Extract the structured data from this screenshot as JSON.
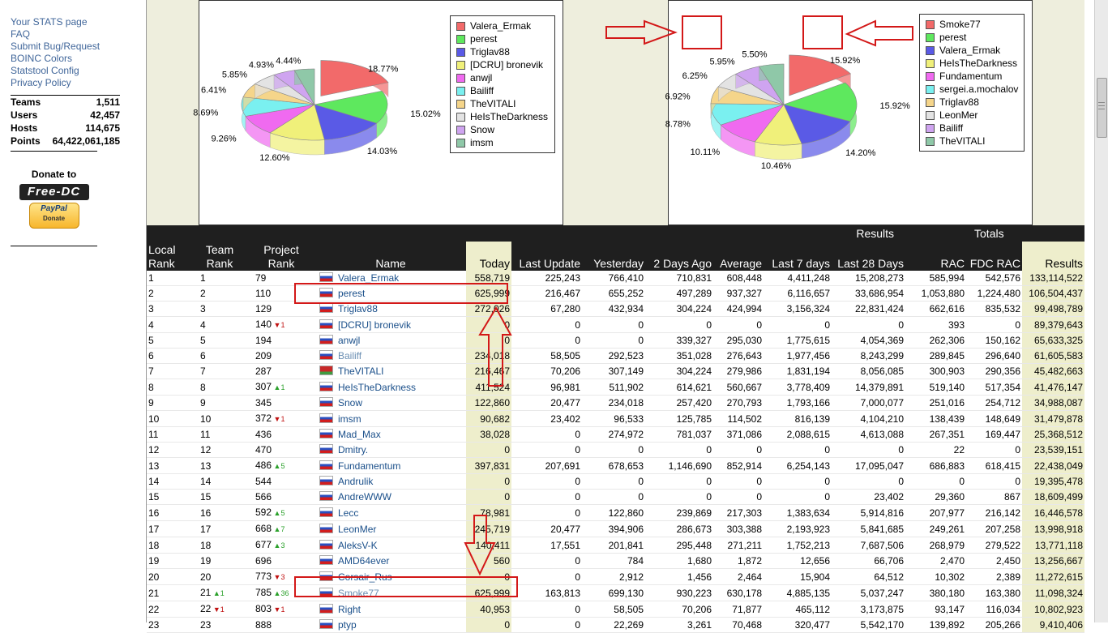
{
  "sidebar": {
    "links": [
      "Your STATS page",
      "FAQ",
      "Submit Bug/Request",
      "BOINC Colors",
      "Statstool Config",
      "Privacy Policy"
    ],
    "stats": [
      {
        "label": "Teams",
        "value": "1,511"
      },
      {
        "label": "Users",
        "value": "42,457"
      },
      {
        "label": "Hosts",
        "value": "114,675"
      },
      {
        "label": "Points",
        "value": "64,422,061,185"
      }
    ],
    "donate_title": "Donate to",
    "freedc_logo": "Free-DC",
    "paypal_label": "PayPal",
    "paypal_sub": "Donate"
  },
  "chart_data": [
    {
      "type": "pie",
      "legend": [
        "Valera_Ermak",
        "perest",
        "Triglav88",
        "[DCRU] bronevik",
        "anwjl",
        "Bailiff",
        "TheVITALI",
        "HeIsTheDarkness",
        "Snow",
        "imsm"
      ],
      "labels": [
        "18.77%",
        "15.02%",
        "14.03%",
        "12.60%",
        "9.26%",
        "8.69%",
        "6.41%",
        "5.85%",
        "4.93%",
        "4.44%"
      ],
      "values": [
        18.77,
        15.02,
        14.03,
        12.6,
        9.26,
        8.69,
        6.41,
        5.85,
        4.93,
        4.44
      ],
      "colors": [
        "#f26a6a",
        "#5ee85e",
        "#5a5ae6",
        "#f0f07a",
        "#f06af0",
        "#7af0f0",
        "#f5d58a",
        "#e3e3e3",
        "#cfa4f0",
        "#8fc8a8"
      ],
      "legend_placement": "right"
    },
    {
      "type": "pie",
      "legend": [
        "Smoke77",
        "perest",
        "Valera_Ermak",
        "HeIsTheDarkness",
        "Fundamentum",
        "sergei.a.mochalov",
        "Triglav88",
        "LeonMer",
        "Bailiff",
        "TheVITALI"
      ],
      "labels": [
        "15.92%",
        "15.92%",
        "14.20%",
        "10.46%",
        "10.11%",
        "8.78%",
        "6.92%",
        "6.25%",
        "5.95%",
        "5.50%"
      ],
      "values": [
        15.92,
        15.92,
        14.2,
        10.46,
        10.11,
        8.78,
        6.92,
        6.25,
        5.95,
        5.5
      ],
      "colors": [
        "#f26a6a",
        "#5ee85e",
        "#5a5ae6",
        "#f0f07a",
        "#f06af0",
        "#7af0f0",
        "#f5d58a",
        "#e3e3e3",
        "#cfa4f0",
        "#8fc8a8"
      ],
      "legend_placement": "right"
    }
  ],
  "table": {
    "group_headers": {
      "results": "Results",
      "totals": "Totals"
    },
    "headers": [
      "Local\nRank",
      "Team\nRank",
      "Project\nRank",
      "Name",
      "Today",
      "Last Update",
      "Yesterday",
      "2 Days Ago",
      "Average",
      "Last 7 days",
      "Last 28 Days",
      "RAC",
      "FDC RAC",
      "Results"
    ],
    "rows": [
      {
        "local": "1",
        "team": "1",
        "project": "79",
        "flag": "ru",
        "name": "Valera_Ermak",
        "today": "558,719",
        "last_update": "225,243",
        "yesterday": "766,410",
        "two_days": "710,831",
        "average": "608,448",
        "last7": "4,411,248",
        "last28": "15,208,273",
        "rac": "585,994",
        "fdc_rac": "542,576",
        "results": "133,114,522"
      },
      {
        "local": "2",
        "team": "2",
        "project": "110",
        "flag": "ru",
        "name": "perest",
        "today": "625,999",
        "last_update": "216,467",
        "yesterday": "655,252",
        "two_days": "497,289",
        "average": "937,327",
        "last7": "6,116,657",
        "last28": "33,686,954",
        "rac": "1,053,880",
        "fdc_rac": "1,224,480",
        "results": "106,504,437"
      },
      {
        "local": "3",
        "team": "3",
        "project": "129",
        "flag": "ru",
        "name": "Triglav88",
        "today": "272,026",
        "last_update": "67,280",
        "yesterday": "432,934",
        "two_days": "304,224",
        "average": "424,994",
        "last7": "3,156,324",
        "last28": "22,831,424",
        "rac": "662,616",
        "fdc_rac": "835,532",
        "results": "99,498,789"
      },
      {
        "local": "4",
        "team": "4",
        "project": "140",
        "change": "▼1",
        "dir": "dn",
        "flag": "ru",
        "name": "[DCRU] bronevik",
        "today": "0",
        "last_update": "0",
        "yesterday": "0",
        "two_days": "0",
        "average": "0",
        "last7": "0",
        "last28": "0",
        "rac": "393",
        "fdc_rac": "0",
        "results": "89,379,643"
      },
      {
        "local": "5",
        "team": "5",
        "project": "194",
        "flag": "ru",
        "name": "anwjl",
        "today": "0",
        "last_update": "0",
        "yesterday": "0",
        "two_days": "339,327",
        "average": "295,030",
        "last7": "1,775,615",
        "last28": "4,054,369",
        "rac": "262,306",
        "fdc_rac": "150,162",
        "results": "65,633,325"
      },
      {
        "local": "6",
        "team": "6",
        "project": "209",
        "flag": "ru",
        "name": "Bailiff",
        "today": "234,018",
        "last_update": "58,505",
        "yesterday": "292,523",
        "two_days": "351,028",
        "average": "276,643",
        "last7": "1,977,456",
        "last28": "8,243,299",
        "rac": "289,845",
        "fdc_rac": "296,640",
        "results": "61,605,583"
      },
      {
        "local": "7",
        "team": "7",
        "project": "287",
        "flag": "by",
        "name": "TheVITALI",
        "today": "216,467",
        "last_update": "70,206",
        "yesterday": "307,149",
        "two_days": "304,224",
        "average": "279,986",
        "last7": "1,831,194",
        "last28": "8,056,085",
        "rac": "300,903",
        "fdc_rac": "290,356",
        "results": "45,482,663"
      },
      {
        "local": "8",
        "team": "8",
        "project": "307",
        "change": "▲1",
        "dir": "up",
        "flag": "ru",
        "name": "HeIsTheDarkness",
        "today": "411,524",
        "last_update": "96,981",
        "yesterday": "511,902",
        "two_days": "614,621",
        "average": "560,667",
        "last7": "3,778,409",
        "last28": "14,379,891",
        "rac": "519,140",
        "fdc_rac": "517,354",
        "results": "41,476,147"
      },
      {
        "local": "9",
        "team": "9",
        "project": "345",
        "flag": "ru",
        "name": "Snow",
        "today": "122,860",
        "last_update": "20,477",
        "yesterday": "234,018",
        "two_days": "257,420",
        "average": "270,793",
        "last7": "1,793,166",
        "last28": "7,000,077",
        "rac": "251,016",
        "fdc_rac": "254,712",
        "results": "34,988,087"
      },
      {
        "local": "10",
        "team": "10",
        "project": "372",
        "change": "▼1",
        "dir": "dn",
        "flag": "ru",
        "name": "imsm",
        "today": "90,682",
        "last_update": "23,402",
        "yesterday": "96,533",
        "two_days": "125,785",
        "average": "114,502",
        "last7": "816,139",
        "last28": "4,104,210",
        "rac": "138,439",
        "fdc_rac": "148,649",
        "results": "31,479,878"
      },
      {
        "local": "11",
        "team": "11",
        "project": "436",
        "flag": "ru",
        "name": "Mad_Max",
        "today": "38,028",
        "last_update": "0",
        "yesterday": "274,972",
        "two_days": "781,037",
        "average": "371,086",
        "last7": "2,088,615",
        "last28": "4,613,088",
        "rac": "267,351",
        "fdc_rac": "169,447",
        "results": "25,368,512"
      },
      {
        "local": "12",
        "team": "12",
        "project": "470",
        "flag": "ru",
        "name": "Dmitry.",
        "today": "0",
        "last_update": "0",
        "yesterday": "0",
        "two_days": "0",
        "average": "0",
        "last7": "0",
        "last28": "0",
        "rac": "22",
        "fdc_rac": "0",
        "results": "23,539,151"
      },
      {
        "local": "13",
        "team": "13",
        "project": "486",
        "change": "▲5",
        "dir": "up",
        "flag": "ru",
        "name": "Fundamentum",
        "today": "397,831",
        "last_update": "207,691",
        "yesterday": "678,653",
        "two_days": "1,146,690",
        "average": "852,914",
        "last7": "6,254,143",
        "last28": "17,095,047",
        "rac": "686,883",
        "fdc_rac": "618,415",
        "results": "22,438,049"
      },
      {
        "local": "14",
        "team": "14",
        "project": "544",
        "flag": "ru",
        "name": "Andrulik",
        "today": "0",
        "last_update": "0",
        "yesterday": "0",
        "two_days": "0",
        "average": "0",
        "last7": "0",
        "last28": "0",
        "rac": "0",
        "fdc_rac": "0",
        "results": "19,395,478"
      },
      {
        "local": "15",
        "team": "15",
        "project": "566",
        "flag": "ru",
        "name": "AndreWWW",
        "today": "0",
        "last_update": "0",
        "yesterday": "0",
        "two_days": "0",
        "average": "0",
        "last7": "0",
        "last28": "23,402",
        "rac": "29,360",
        "fdc_rac": "867",
        "results": "18,609,499"
      },
      {
        "local": "16",
        "team": "16",
        "project": "592",
        "change": "▲5",
        "dir": "up",
        "flag": "ru",
        "name": "Lecc",
        "today": "78,981",
        "last_update": "0",
        "yesterday": "122,860",
        "two_days": "239,869",
        "average": "217,303",
        "last7": "1,383,634",
        "last28": "5,914,816",
        "rac": "207,977",
        "fdc_rac": "216,142",
        "results": "16,446,578"
      },
      {
        "local": "17",
        "team": "17",
        "project": "668",
        "change": "▲7",
        "dir": "up",
        "flag": "ru",
        "name": "LeonMer",
        "today": "245,719",
        "last_update": "20,477",
        "yesterday": "394,906",
        "two_days": "286,673",
        "average": "303,388",
        "last7": "2,193,923",
        "last28": "5,841,685",
        "rac": "249,261",
        "fdc_rac": "207,258",
        "results": "13,998,918"
      },
      {
        "local": "18",
        "team": "18",
        "project": "677",
        "change": "▲3",
        "dir": "up",
        "flag": "ru",
        "name": "AleksV-K",
        "today": "140,411",
        "last_update": "17,551",
        "yesterday": "201,841",
        "two_days": "295,448",
        "average": "271,211",
        "last7": "1,752,213",
        "last28": "7,687,506",
        "rac": "268,979",
        "fdc_rac": "279,522",
        "results": "13,771,118"
      },
      {
        "local": "19",
        "team": "19",
        "project": "696",
        "flag": "ru",
        "name": "AMD64ever",
        "today": "560",
        "last_update": "0",
        "yesterday": "784",
        "two_days": "1,680",
        "average": "1,872",
        "last7": "12,656",
        "last28": "66,706",
        "rac": "2,470",
        "fdc_rac": "2,450",
        "results": "13,256,667"
      },
      {
        "local": "20",
        "team": "20",
        "project": "773",
        "change": "▼3",
        "dir": "dn",
        "flag": "ru",
        "name": "Corsair_Rus",
        "today": "0",
        "last_update": "0",
        "yesterday": "2,912",
        "two_days": "1,456",
        "average": "2,464",
        "last7": "15,904",
        "last28": "64,512",
        "rac": "10,302",
        "fdc_rac": "2,389",
        "results": "11,272,615"
      },
      {
        "local": "21",
        "team": "21",
        "team_change": "▲1",
        "team_dir": "up",
        "project": "785",
        "change": "▲36",
        "dir": "up",
        "flag": "ru",
        "name": "Smoke77",
        "today": "625,999",
        "last_update": "163,813",
        "yesterday": "699,130",
        "two_days": "930,223",
        "average": "630,178",
        "last7": "4,885,135",
        "last28": "5,037,247",
        "rac": "380,180",
        "fdc_rac": "163,380",
        "results": "11,098,324"
      },
      {
        "local": "22",
        "team": "22",
        "team_change": "▼1",
        "team_dir": "dn",
        "project": "803",
        "change": "▼1",
        "dir": "dn",
        "flag": "ru",
        "name": "Right",
        "today": "40,953",
        "last_update": "0",
        "yesterday": "58,505",
        "two_days": "70,206",
        "average": "71,877",
        "last7": "465,112",
        "last28": "3,173,875",
        "rac": "93,147",
        "fdc_rac": "116,034",
        "results": "10,802,923"
      },
      {
        "local": "23",
        "team": "23",
        "project": "888",
        "flag": "ru",
        "name": "ptyp",
        "today": "0",
        "last_update": "0",
        "yesterday": "22,269",
        "two_days": "3,261",
        "average": "70,468",
        "last7": "320,477",
        "last28": "5,542,170",
        "rac": "139,892",
        "fdc_rac": "205,266",
        "results": "9,410,406"
      }
    ]
  }
}
